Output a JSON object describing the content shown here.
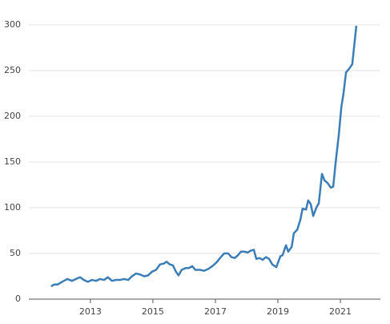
{
  "chart_data": {
    "type": "line",
    "x": [
      2011.74,
      2011.85,
      2011.95,
      2012.1,
      2012.26,
      2012.41,
      2012.54,
      2012.67,
      2012.79,
      2012.92,
      2013.05,
      2013.18,
      2013.31,
      2013.44,
      2013.56,
      2013.69,
      2013.82,
      2013.95,
      2014.08,
      2014.21,
      2014.33,
      2014.46,
      2014.59,
      2014.72,
      2014.85,
      2014.97,
      2015.1,
      2015.23,
      2015.36,
      2015.44,
      2015.54,
      2015.64,
      2015.74,
      2015.82,
      2015.92,
      2016.05,
      2016.15,
      2016.26,
      2016.36,
      2016.51,
      2016.64,
      2016.77,
      2016.9,
      2017.03,
      2017.15,
      2017.28,
      2017.41,
      2017.51,
      2017.62,
      2017.72,
      2017.82,
      2017.92,
      2018.03,
      2018.13,
      2018.23,
      2018.31,
      2018.41,
      2018.51,
      2018.62,
      2018.72,
      2018.82,
      2018.95,
      2019.08,
      2019.15,
      2019.26,
      2019.33,
      2019.44,
      2019.51,
      2019.62,
      2019.72,
      2019.79,
      2019.9,
      2019.97,
      2020.05,
      2020.13,
      2020.23,
      2020.31,
      2020.41,
      2020.49,
      2020.59,
      2020.69,
      2020.77,
      2020.85,
      2020.95,
      2021.03,
      2021.1,
      2021.18,
      2021.28,
      2021.38,
      2021.51
    ],
    "series": [
      {
        "color": "#3b7db6",
        "values": [
          14,
          16,
          16,
          19,
          22,
          20,
          22,
          24,
          21,
          19,
          21,
          20,
          22,
          21,
          24,
          20,
          21,
          21,
          22,
          21,
          25,
          28,
          27,
          25,
          26,
          30,
          32,
          38,
          39,
          41,
          38,
          37,
          30,
          26,
          32,
          34,
          34,
          36,
          32,
          32,
          31,
          33,
          36,
          40,
          45,
          50,
          50,
          46,
          45,
          48,
          52,
          52,
          51,
          53,
          54,
          44,
          45,
          43,
          46,
          44,
          38,
          35,
          47,
          48,
          59,
          52,
          57,
          72,
          76,
          87,
          99,
          98,
          108,
          104,
          91,
          100,
          105,
          137,
          130,
          127,
          122,
          123,
          150,
          180,
          210,
          225,
          248,
          252,
          257,
          299
        ]
      }
    ],
    "xlim": [
      2011.03,
      2022.28
    ],
    "xticks": [
      2013,
      2015,
      2017,
      2019,
      2021
    ],
    "ylim": [
      0,
      300
    ],
    "yticks": [
      0,
      50,
      100,
      150,
      200,
      250,
      300
    ],
    "grid": true
  }
}
